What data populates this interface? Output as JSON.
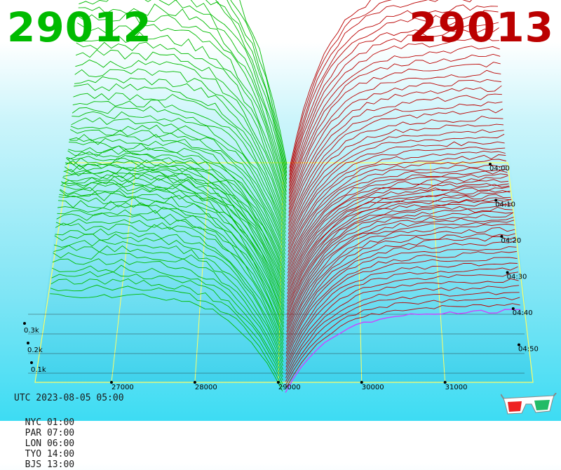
{
  "header": {
    "bid_price": "29012",
    "ask_price": "29013",
    "bid_color": "#00bb00",
    "ask_color": "#bb0000"
  },
  "footer": {
    "utc": "UTC 2023-08-05 05:00",
    "cities": [
      {
        "label": "NYC 01:00"
      },
      {
        "label": "PAR 07:00"
      },
      {
        "label": "LON 06:00"
      },
      {
        "label": "TYO 14:00"
      },
      {
        "label": "BJS 13:00"
      }
    ]
  },
  "chart_data": {
    "type": "line",
    "view": "3d-depth",
    "x_axis": {
      "ticks": [
        "27000",
        "28000",
        "29000",
        "30000",
        "31000"
      ]
    },
    "y_axis": {
      "ticks": [
        "0.1k",
        "0.2k",
        "0.3k"
      ]
    },
    "time_axis": {
      "ticks": [
        "04:00",
        "04:10",
        "04:20",
        "04:30",
        "04:40",
        "04:50"
      ]
    },
    "series": [
      {
        "side": "bid",
        "color": "#00bb00"
      },
      {
        "side": "ask",
        "color": "#bb0000"
      }
    ],
    "colors": {
      "frame": "#ffff66",
      "current_line": "#cc44ff"
    }
  }
}
